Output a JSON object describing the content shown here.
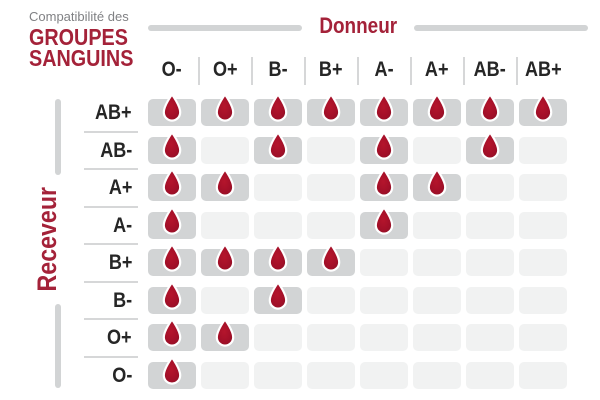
{
  "title": {
    "pretitle": "Compatibilité des",
    "main_line1": "GROUPES",
    "main_line2": "SANGUINS"
  },
  "donor_axis": {
    "label": "Donneur"
  },
  "receiver_axis": {
    "label": "Receveur"
  },
  "chart_data": {
    "type": "table",
    "title": "Compatibilité des groupes sanguins",
    "columns_axis_label": "Donneur",
    "rows_axis_label": "Receveur",
    "donors": [
      "O-",
      "O+",
      "B-",
      "B+",
      "A-",
      "A+",
      "AB-",
      "AB+"
    ],
    "receivers": [
      "AB+",
      "AB-",
      "A+",
      "A-",
      "B+",
      "B-",
      "O+",
      "O-"
    ],
    "matrix": [
      [
        1,
        1,
        1,
        1,
        1,
        1,
        1,
        1
      ],
      [
        1,
        0,
        1,
        0,
        1,
        0,
        1,
        0
      ],
      [
        1,
        1,
        0,
        0,
        1,
        1,
        0,
        0
      ],
      [
        1,
        0,
        0,
        0,
        1,
        0,
        0,
        0
      ],
      [
        1,
        1,
        1,
        1,
        0,
        0,
        0,
        0
      ],
      [
        1,
        0,
        1,
        0,
        0,
        0,
        0,
        0
      ],
      [
        1,
        1,
        0,
        0,
        0,
        0,
        0,
        0
      ],
      [
        1,
        0,
        0,
        0,
        0,
        0,
        0,
        0
      ]
    ],
    "compatible": {
      "AB+": [
        "O-",
        "O+",
        "B-",
        "B+",
        "A-",
        "A+",
        "AB-",
        "AB+"
      ],
      "AB-": [
        "O-",
        "B-",
        "A-",
        "AB-"
      ],
      "A+": [
        "O-",
        "O+",
        "A-",
        "A+"
      ],
      "A-": [
        "O-",
        "A-"
      ],
      "B+": [
        "O-",
        "O+",
        "B-",
        "B+"
      ],
      "B-": [
        "O-",
        "B-"
      ],
      "O+": [
        "O-",
        "O+"
      ],
      "O-": [
        "O-"
      ]
    },
    "cell_marker_icon": "blood-drop-icon",
    "legend": "drop present = donor compatible with receiver"
  },
  "colors": {
    "brand_red": "#a42239",
    "drop_red_center": "#b5152c",
    "drop_red_edge": "#8e1125",
    "cell_filled": "#d2d4d5",
    "cell_empty": "#f1f2f2",
    "axis_line_gray": "#d2d4d5",
    "separator_gray": "#d6d7d8",
    "label_text": "#262626",
    "pretitle_gray": "#808184",
    "background": "#ffffff"
  }
}
